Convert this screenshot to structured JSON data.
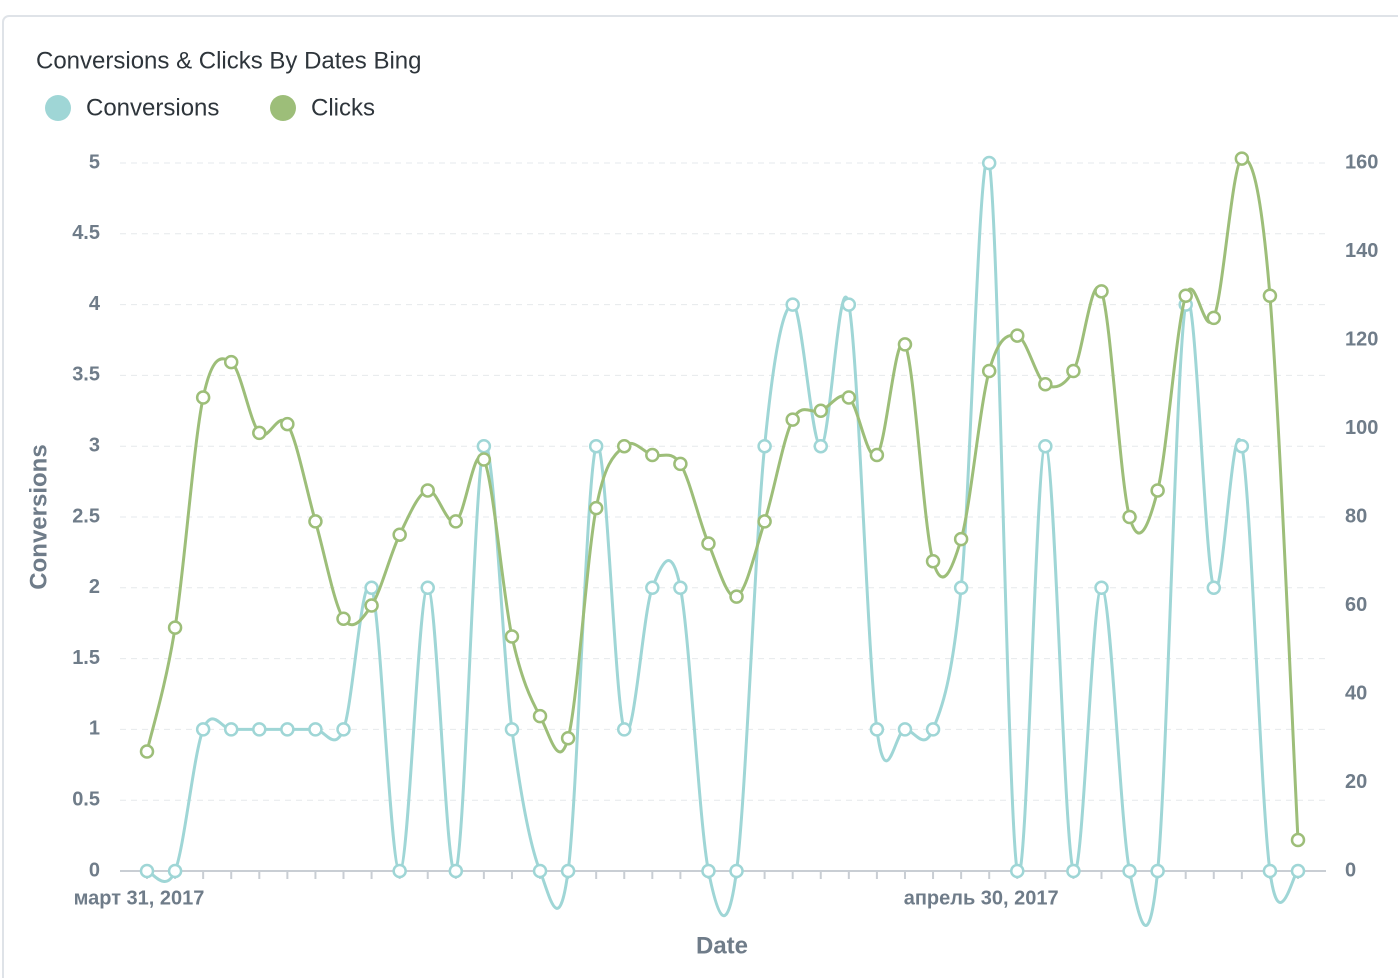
{
  "chart_data": {
    "type": "line",
    "title": "Conversions & Clicks By Dates Bing",
    "x_label": "Date",
    "y_label": "Conversions",
    "categories": [
      "март 31, 2017",
      null,
      null,
      null,
      null,
      null,
      null,
      null,
      null,
      null,
      null,
      null,
      null,
      null,
      null,
      null,
      null,
      null,
      null,
      null,
      null,
      null,
      null,
      null,
      null,
      null,
      null,
      null,
      null,
      null,
      "апрель 30, 2017",
      null,
      null,
      null,
      null,
      null,
      null,
      null,
      null,
      null,
      null,
      null
    ],
    "series": [
      {
        "name": "Conversions",
        "color": "#9fd6d6",
        "axis": "y",
        "values": [
          0,
          0,
          1,
          1,
          1,
          1,
          1,
          1,
          2,
          0,
          2,
          0,
          3,
          1,
          0,
          0,
          3,
          1,
          2,
          2,
          0,
          0,
          3,
          4,
          3,
          4,
          1,
          1,
          1,
          2,
          5,
          0,
          3,
          0,
          2,
          0,
          0,
          4,
          2,
          3,
          0,
          0
        ]
      },
      {
        "name": "Clicks",
        "color": "#9dbe79",
        "axis": "y2",
        "values": [
          27,
          55,
          107,
          115,
          99,
          101,
          79,
          57,
          60,
          76,
          86,
          79,
          93,
          53,
          35,
          30,
          82,
          96,
          94,
          92,
          74,
          62,
          79,
          102,
          104,
          107,
          94,
          119,
          70,
          75,
          113,
          121,
          110,
          113,
          131,
          80,
          86,
          130,
          125,
          161,
          130,
          7
        ]
      }
    ],
    "ylim": [
      0,
      5
    ],
    "yticks": [
      0,
      0.5,
      1,
      1.5,
      2,
      2.5,
      3,
      3.5,
      4,
      4.5,
      5
    ],
    "y2lim": [
      0,
      160
    ],
    "y2ticks": [
      0,
      20,
      40,
      60,
      80,
      100,
      120,
      140,
      160
    ],
    "grid": true
  }
}
